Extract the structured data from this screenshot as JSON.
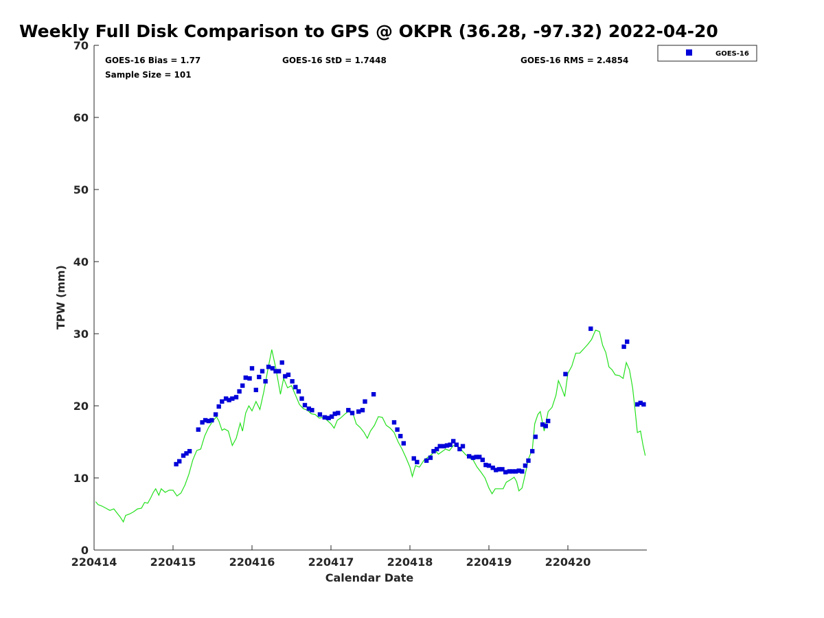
{
  "colors": {
    "goes": "#0000d9",
    "gps": "#22e01b",
    "axis": "#262626"
  },
  "stats": {
    "bias": "GOES-16 Bias = 1.77",
    "std": "GOES-16 StD = 1.7448",
    "rms": "GOES-16 RMS = 2.4854",
    "sample": "Sample Size = 101"
  },
  "legend": {
    "goes_label": "GOES-16"
  },
  "chart_data": {
    "type": "scatter",
    "title": "Weekly Full Disk Comparison to GPS @ OKPR (36.28, -97.32) 2022-04-20",
    "xlabel": "Calendar Date",
    "ylabel": "TPW (mm)",
    "xlim": [
      0,
      7
    ],
    "ylim": [
      0,
      70
    ],
    "x_ticks": [
      {
        "value": 0,
        "label": "220414"
      },
      {
        "value": 1,
        "label": "220415"
      },
      {
        "value": 2,
        "label": "220416"
      },
      {
        "value": 3,
        "label": "220417"
      },
      {
        "value": 4,
        "label": "220418"
      },
      {
        "value": 5,
        "label": "220419"
      },
      {
        "value": 6,
        "label": "220420"
      }
    ],
    "y_ticks": [
      {
        "value": 0,
        "label": "0"
      },
      {
        "value": 10,
        "label": "10"
      },
      {
        "value": 20,
        "label": "20"
      },
      {
        "value": 30,
        "label": "30"
      },
      {
        "value": 40,
        "label": "40"
      },
      {
        "value": 50,
        "label": "50"
      },
      {
        "value": 60,
        "label": "60"
      },
      {
        "value": 70,
        "label": "70"
      }
    ],
    "legend_position": "outside-top-right",
    "series": [
      {
        "name": "GOES-16",
        "mark": "square",
        "points": [
          [
            1.04,
            11.9
          ],
          [
            1.08,
            12.3
          ],
          [
            1.13,
            13.1
          ],
          [
            1.17,
            13.4
          ],
          [
            1.21,
            13.7
          ],
          [
            1.32,
            16.7
          ],
          [
            1.37,
            17.7
          ],
          [
            1.41,
            18.0
          ],
          [
            1.45,
            17.9
          ],
          [
            1.49,
            18.0
          ],
          [
            1.54,
            18.8
          ],
          [
            1.58,
            19.9
          ],
          [
            1.62,
            20.6
          ],
          [
            1.67,
            21.0
          ],
          [
            1.71,
            20.8
          ],
          [
            1.75,
            21.0
          ],
          [
            1.8,
            21.2
          ],
          [
            1.84,
            22.0
          ],
          [
            1.88,
            22.8
          ],
          [
            1.92,
            23.9
          ],
          [
            1.97,
            23.8
          ],
          [
            2.0,
            25.2
          ],
          [
            2.05,
            22.2
          ],
          [
            2.09,
            24.0
          ],
          [
            2.13,
            24.8
          ],
          [
            2.17,
            23.4
          ],
          [
            2.21,
            25.4
          ],
          [
            2.26,
            25.2
          ],
          [
            2.3,
            24.8
          ],
          [
            2.34,
            24.8
          ],
          [
            2.38,
            26.0
          ],
          [
            2.42,
            24.1
          ],
          [
            2.46,
            24.3
          ],
          [
            2.51,
            23.4
          ],
          [
            2.55,
            22.6
          ],
          [
            2.59,
            22.0
          ],
          [
            2.63,
            21.0
          ],
          [
            2.67,
            20.1
          ],
          [
            2.72,
            19.6
          ],
          [
            2.76,
            19.4
          ],
          [
            2.86,
            18.8
          ],
          [
            2.92,
            18.4
          ],
          [
            2.97,
            18.3
          ],
          [
            3.01,
            18.5
          ],
          [
            3.05,
            18.9
          ],
          [
            3.09,
            19.0
          ],
          [
            3.22,
            19.4
          ],
          [
            3.27,
            19.0
          ],
          [
            3.35,
            19.2
          ],
          [
            3.4,
            19.4
          ],
          [
            3.43,
            20.6
          ],
          [
            3.54,
            21.6
          ],
          [
            3.8,
            17.7
          ],
          [
            3.84,
            16.7
          ],
          [
            3.88,
            15.8
          ],
          [
            3.92,
            14.8
          ],
          [
            4.05,
            12.7
          ],
          [
            4.09,
            12.2
          ],
          [
            4.21,
            12.4
          ],
          [
            4.26,
            12.8
          ],
          [
            4.3,
            13.7
          ],
          [
            4.34,
            14.0
          ],
          [
            4.38,
            14.4
          ],
          [
            4.43,
            14.4
          ],
          [
            4.47,
            14.5
          ],
          [
            4.51,
            14.6
          ],
          [
            4.55,
            15.1
          ],
          [
            4.59,
            14.6
          ],
          [
            4.63,
            14.0
          ],
          [
            4.67,
            14.4
          ],
          [
            4.75,
            13.0
          ],
          [
            4.8,
            12.8
          ],
          [
            4.84,
            12.9
          ],
          [
            4.88,
            12.9
          ],
          [
            4.92,
            12.5
          ],
          [
            4.96,
            11.8
          ],
          [
            5.0,
            11.7
          ],
          [
            5.05,
            11.4
          ],
          [
            5.09,
            11.1
          ],
          [
            5.13,
            11.2
          ],
          [
            5.17,
            11.2
          ],
          [
            5.21,
            10.8
          ],
          [
            5.26,
            10.9
          ],
          [
            5.3,
            10.9
          ],
          [
            5.34,
            10.9
          ],
          [
            5.38,
            11.0
          ],
          [
            5.42,
            10.9
          ],
          [
            5.46,
            11.7
          ],
          [
            5.5,
            12.4
          ],
          [
            5.55,
            13.7
          ],
          [
            5.59,
            15.7
          ],
          [
            5.68,
            17.4
          ],
          [
            5.72,
            17.2
          ],
          [
            5.75,
            17.9
          ],
          [
            5.97,
            24.4
          ],
          [
            6.29,
            30.7
          ],
          [
            6.71,
            28.2
          ],
          [
            6.75,
            28.9
          ],
          [
            6.88,
            20.2
          ],
          [
            6.92,
            20.4
          ],
          [
            6.96,
            20.2
          ]
        ]
      },
      {
        "name": "GPS",
        "mark": "line",
        "points": [
          [
            0.02,
            6.7
          ],
          [
            0.05,
            6.3
          ],
          [
            0.1,
            6.1
          ],
          [
            0.15,
            5.8
          ],
          [
            0.2,
            5.5
          ],
          [
            0.25,
            5.7
          ],
          [
            0.3,
            5.0
          ],
          [
            0.33,
            4.6
          ],
          [
            0.37,
            3.9
          ],
          [
            0.4,
            4.8
          ],
          [
            0.45,
            5.0
          ],
          [
            0.5,
            5.3
          ],
          [
            0.55,
            5.7
          ],
          [
            0.6,
            5.8
          ],
          [
            0.64,
            6.6
          ],
          [
            0.68,
            6.5
          ],
          [
            0.72,
            7.3
          ],
          [
            0.75,
            8.0
          ],
          [
            0.78,
            8.5
          ],
          [
            0.82,
            7.6
          ],
          [
            0.85,
            8.5
          ],
          [
            0.9,
            8.0
          ],
          [
            0.95,
            8.3
          ],
          [
            1.0,
            8.3
          ],
          [
            1.05,
            7.5
          ],
          [
            1.1,
            7.9
          ],
          [
            1.15,
            9.0
          ],
          [
            1.2,
            10.5
          ],
          [
            1.25,
            12.5
          ],
          [
            1.3,
            13.8
          ],
          [
            1.35,
            14.0
          ],
          [
            1.4,
            15.8
          ],
          [
            1.45,
            17.0
          ],
          [
            1.5,
            17.8
          ],
          [
            1.55,
            18.5
          ],
          [
            1.58,
            17.9
          ],
          [
            1.62,
            16.6
          ],
          [
            1.65,
            16.8
          ],
          [
            1.7,
            16.5
          ],
          [
            1.75,
            14.5
          ],
          [
            1.8,
            15.5
          ],
          [
            1.85,
            17.6
          ],
          [
            1.88,
            16.5
          ],
          [
            1.92,
            19.0
          ],
          [
            1.96,
            20.0
          ],
          [
            2.0,
            19.3
          ],
          [
            2.05,
            20.6
          ],
          [
            2.1,
            19.5
          ],
          [
            2.15,
            22.0
          ],
          [
            2.2,
            25.0
          ],
          [
            2.25,
            27.8
          ],
          [
            2.3,
            25.3
          ],
          [
            2.33,
            23.5
          ],
          [
            2.36,
            21.6
          ],
          [
            2.4,
            23.8
          ],
          [
            2.45,
            22.5
          ],
          [
            2.5,
            22.8
          ],
          [
            2.55,
            21.5
          ],
          [
            2.6,
            20.2
          ],
          [
            2.65,
            19.6
          ],
          [
            2.7,
            19.4
          ],
          [
            2.75,
            18.9
          ],
          [
            2.8,
            18.8
          ],
          [
            2.85,
            18.3
          ],
          [
            2.9,
            18.4
          ],
          [
            2.95,
            18.0
          ],
          [
            3.0,
            17.5
          ],
          [
            3.04,
            16.9
          ],
          [
            3.08,
            18.0
          ],
          [
            3.12,
            18.3
          ],
          [
            3.18,
            18.9
          ],
          [
            3.22,
            19.2
          ],
          [
            3.28,
            18.9
          ],
          [
            3.32,
            17.5
          ],
          [
            3.37,
            17.0
          ],
          [
            3.42,
            16.3
          ],
          [
            3.46,
            15.5
          ],
          [
            3.5,
            16.5
          ],
          [
            3.55,
            17.3
          ],
          [
            3.6,
            18.5
          ],
          [
            3.65,
            18.4
          ],
          [
            3.7,
            17.3
          ],
          [
            3.75,
            16.9
          ],
          [
            3.8,
            16.3
          ],
          [
            3.85,
            15.0
          ],
          [
            3.9,
            14.0
          ],
          [
            3.95,
            12.8
          ],
          [
            4.0,
            11.5
          ],
          [
            4.03,
            10.2
          ],
          [
            4.07,
            11.7
          ],
          [
            4.12,
            11.5
          ],
          [
            4.18,
            12.5
          ],
          [
            4.22,
            12.8
          ],
          [
            4.28,
            13.3
          ],
          [
            4.32,
            13.8
          ],
          [
            4.36,
            13.3
          ],
          [
            4.4,
            13.6
          ],
          [
            4.45,
            14.0
          ],
          [
            4.5,
            13.8
          ],
          [
            4.55,
            14.5
          ],
          [
            4.6,
            14.5
          ],
          [
            4.65,
            13.9
          ],
          [
            4.7,
            13.3
          ],
          [
            4.75,
            12.8
          ],
          [
            4.8,
            12.5
          ],
          [
            4.85,
            11.5
          ],
          [
            4.9,
            10.8
          ],
          [
            4.95,
            10.0
          ],
          [
            5.0,
            8.6
          ],
          [
            5.04,
            7.8
          ],
          [
            5.08,
            8.5
          ],
          [
            5.12,
            8.5
          ],
          [
            5.18,
            8.5
          ],
          [
            5.22,
            9.4
          ],
          [
            5.28,
            9.8
          ],
          [
            5.32,
            10.1
          ],
          [
            5.35,
            9.5
          ],
          [
            5.38,
            8.2
          ],
          [
            5.42,
            8.6
          ],
          [
            5.46,
            10.5
          ],
          [
            5.5,
            12.6
          ],
          [
            5.55,
            14.0
          ],
          [
            5.58,
            17.5
          ],
          [
            5.62,
            18.8
          ],
          [
            5.65,
            19.2
          ],
          [
            5.7,
            16.5
          ],
          [
            5.75,
            19.2
          ],
          [
            5.8,
            19.8
          ],
          [
            5.85,
            21.5
          ],
          [
            5.88,
            23.5
          ],
          [
            5.92,
            22.5
          ],
          [
            5.96,
            21.3
          ],
          [
            6.0,
            24.5
          ],
          [
            6.05,
            25.5
          ],
          [
            6.1,
            27.3
          ],
          [
            6.15,
            27.3
          ],
          [
            6.2,
            27.9
          ],
          [
            6.25,
            28.5
          ],
          [
            6.3,
            29.2
          ],
          [
            6.35,
            30.5
          ],
          [
            6.4,
            30.3
          ],
          [
            6.44,
            28.4
          ],
          [
            6.48,
            27.4
          ],
          [
            6.52,
            25.4
          ],
          [
            6.56,
            25.0
          ],
          [
            6.6,
            24.3
          ],
          [
            6.65,
            24.2
          ],
          [
            6.7,
            23.8
          ],
          [
            6.74,
            26.0
          ],
          [
            6.78,
            25.0
          ],
          [
            6.82,
            22.5
          ],
          [
            6.85,
            19.5
          ],
          [
            6.88,
            16.3
          ],
          [
            6.92,
            16.5
          ],
          [
            6.95,
            14.6
          ],
          [
            6.98,
            13.1
          ]
        ]
      }
    ]
  }
}
